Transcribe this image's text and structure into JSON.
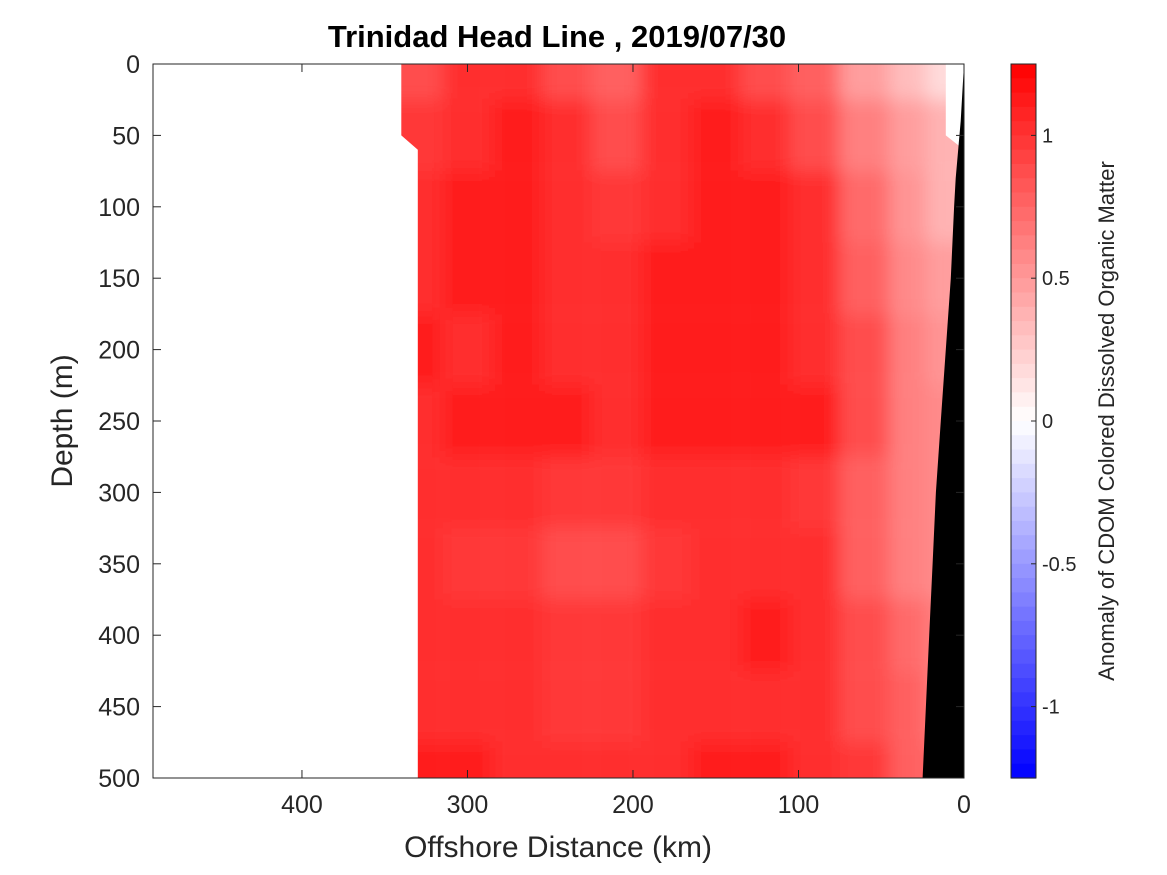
{
  "chart_data": {
    "type": "heatmap",
    "title": "Trinidad Head Line , 2019/07/30",
    "xlabel": "Offshore Distance (km)",
    "ylabel": "Depth (m)",
    "xlim": [
      490,
      0
    ],
    "ylim": [
      0,
      500
    ],
    "x_reversed": true,
    "y_reversed": true,
    "xticks": [
      400,
      300,
      200,
      100,
      0
    ],
    "yticks": [
      0,
      50,
      100,
      150,
      200,
      250,
      300,
      350,
      400,
      450,
      500
    ],
    "colorbar": {
      "label": "Anomaly of CDOM Colored Dissolved Organic Matter",
      "range": [
        -1.25,
        1.25
      ],
      "ticks": [
        1,
        0.5,
        0,
        -0.5,
        -1
      ],
      "tick_labels": [
        "1",
        "0.5",
        "0",
        "-0.5",
        "-1"
      ],
      "colormap": "blue-white-red",
      "levels": 50,
      "color_low": "#0000ff",
      "color_mid": "#ffffff",
      "color_high": "#ff0000"
    },
    "data_extent": {
      "x_offshore_edge_upper": [
        340,
        0,
        50
      ],
      "x_offshore_edge_lower": [
        330,
        60,
        500
      ],
      "x_inshore_edge_upper": [
        11,
        0,
        50
      ]
    },
    "grid": {
      "x_km": [
        330,
        300,
        270,
        240,
        210,
        180,
        150,
        120,
        90,
        60,
        30,
        15
      ],
      "depth_m": [
        0,
        50,
        100,
        150,
        200,
        250,
        300,
        350,
        400,
        450,
        500
      ],
      "values": [
        [
          0.9,
          1.0,
          1.0,
          0.85,
          0.8,
          1.0,
          1.0,
          0.9,
          0.75,
          0.45,
          0.3,
          0.2
        ],
        [
          0.95,
          1.05,
          1.1,
          1.0,
          0.9,
          1.05,
          1.1,
          1.05,
          0.9,
          0.6,
          0.45,
          0.35
        ],
        [
          1.0,
          1.1,
          1.1,
          1.0,
          0.95,
          1.05,
          1.15,
          1.15,
          1.0,
          0.7,
          0.5,
          0.4
        ],
        [
          1.05,
          1.1,
          1.15,
          1.05,
          1.0,
          1.1,
          1.1,
          1.1,
          1.05,
          0.8,
          0.55,
          0.45
        ],
        [
          1.1,
          1.05,
          1.1,
          1.05,
          1.05,
          1.1,
          1.15,
          1.15,
          1.05,
          0.9,
          0.6,
          0.5
        ],
        [
          1.05,
          1.15,
          1.15,
          1.1,
          1.05,
          1.1,
          1.15,
          1.15,
          1.1,
          0.85,
          0.65,
          0.55
        ],
        [
          1.0,
          1.05,
          1.0,
          0.95,
          0.95,
          1.0,
          1.0,
          1.0,
          0.95,
          0.8,
          0.6,
          0.55
        ],
        [
          1.0,
          0.95,
          0.95,
          0.9,
          0.9,
          0.95,
          1.0,
          1.05,
          1.0,
          0.8,
          0.6,
          0.55
        ],
        [
          1.05,
          1.0,
          1.0,
          0.95,
          0.95,
          1.0,
          1.05,
          1.1,
          1.05,
          0.85,
          0.7,
          0.6
        ],
        [
          1.05,
          1.05,
          1.0,
          0.95,
          0.95,
          1.0,
          1.05,
          1.05,
          1.0,
          0.9,
          0.75,
          0.65
        ],
        [
          1.1,
          1.1,
          1.05,
          1.0,
          1.0,
          1.05,
          1.1,
          1.1,
          1.05,
          0.95,
          0.8,
          0.7
        ]
      ]
    },
    "bottom_topography": {
      "color": "#000000",
      "points": [
        [
          0,
          0
        ],
        [
          0,
          500
        ],
        [
          25,
          500
        ],
        [
          23,
          450
        ],
        [
          21,
          400
        ],
        [
          19,
          350
        ],
        [
          17,
          300
        ],
        [
          14,
          250
        ],
        [
          11,
          200
        ],
        [
          8,
          150
        ],
        [
          6,
          100
        ],
        [
          5,
          80
        ],
        [
          2,
          40
        ],
        [
          0,
          0
        ]
      ]
    }
  }
}
